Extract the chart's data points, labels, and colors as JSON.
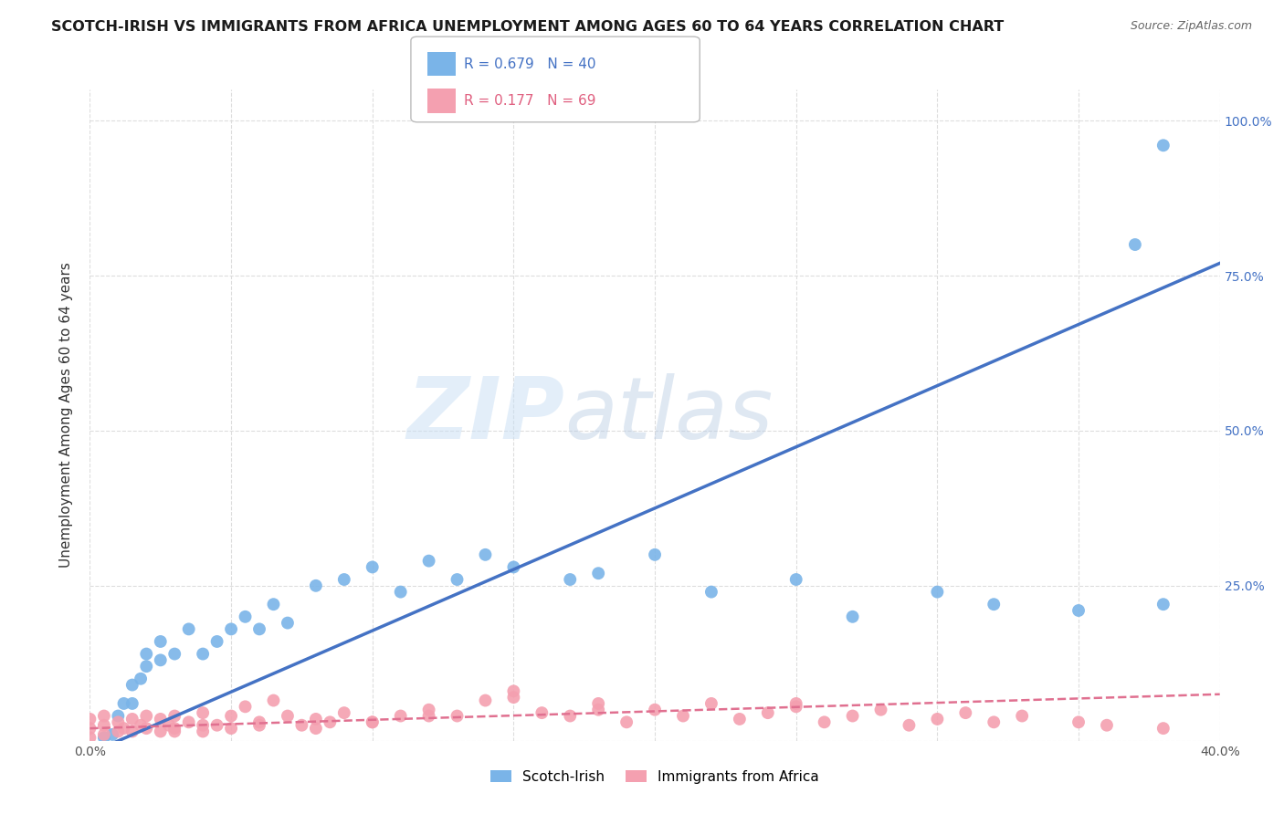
{
  "title": "SCOTCH-IRISH VS IMMIGRANTS FROM AFRICA UNEMPLOYMENT AMONG AGES 60 TO 64 YEARS CORRELATION CHART",
  "source": "Source: ZipAtlas.com",
  "ylabel": "Unemployment Among Ages 60 to 64 years",
  "xmin": 0.0,
  "xmax": 0.4,
  "ymin": 0.0,
  "ymax": 1.05,
  "x_ticks": [
    0.0,
    0.05,
    0.1,
    0.15,
    0.2,
    0.25,
    0.3,
    0.35,
    0.4
  ],
  "y_ticks": [
    0.0,
    0.25,
    0.5,
    0.75,
    1.0
  ],
  "watermark_zip": "ZIP",
  "watermark_atlas": "atlas",
  "series1_color": "#7ab4e8",
  "series2_color": "#f4a0b0",
  "series1_label": "Scotch-Irish",
  "series2_label": "Immigrants from Africa",
  "series1_R": "0.679",
  "series1_N": "40",
  "series2_R": "0.177",
  "series2_N": "69",
  "line1_color": "#4472c4",
  "line2_color": "#e07090",
  "line1_x0": 0.0,
  "line1_y0": -0.02,
  "line1_x1": 0.4,
  "line1_y1": 0.77,
  "line2_x0": 0.0,
  "line2_y0": 0.02,
  "line2_x1": 0.4,
  "line2_y1": 0.075,
  "grid_color": "#dddddd",
  "series1_x": [
    0.005,
    0.008,
    0.01,
    0.012,
    0.015,
    0.015,
    0.018,
    0.02,
    0.02,
    0.025,
    0.025,
    0.03,
    0.035,
    0.04,
    0.045,
    0.05,
    0.055,
    0.06,
    0.065,
    0.07,
    0.08,
    0.09,
    0.1,
    0.11,
    0.12,
    0.13,
    0.14,
    0.15,
    0.17,
    0.18,
    0.2,
    0.22,
    0.25,
    0.27,
    0.3,
    0.32,
    0.35,
    0.38,
    0.37,
    0.38
  ],
  "series1_y": [
    0.005,
    0.01,
    0.04,
    0.06,
    0.06,
    0.09,
    0.1,
    0.12,
    0.14,
    0.13,
    0.16,
    0.14,
    0.18,
    0.14,
    0.16,
    0.18,
    0.2,
    0.18,
    0.22,
    0.19,
    0.25,
    0.26,
    0.28,
    0.24,
    0.29,
    0.26,
    0.3,
    0.28,
    0.26,
    0.27,
    0.3,
    0.24,
    0.26,
    0.2,
    0.24,
    0.22,
    0.21,
    0.22,
    0.8,
    0.96
  ],
  "series2_x": [
    0.0,
    0.0,
    0.0,
    0.005,
    0.005,
    0.005,
    0.01,
    0.01,
    0.012,
    0.015,
    0.015,
    0.018,
    0.02,
    0.02,
    0.025,
    0.025,
    0.028,
    0.03,
    0.03,
    0.035,
    0.04,
    0.04,
    0.045,
    0.05,
    0.05,
    0.055,
    0.06,
    0.065,
    0.07,
    0.075,
    0.08,
    0.085,
    0.09,
    0.1,
    0.11,
    0.12,
    0.13,
    0.14,
    0.15,
    0.16,
    0.17,
    0.18,
    0.19,
    0.2,
    0.21,
    0.22,
    0.23,
    0.24,
    0.25,
    0.26,
    0.27,
    0.28,
    0.29,
    0.3,
    0.31,
    0.32,
    0.33,
    0.35,
    0.36,
    0.38,
    0.25,
    0.18,
    0.15,
    0.12,
    0.1,
    0.08,
    0.06,
    0.04,
    0.03
  ],
  "series2_y": [
    0.005,
    0.02,
    0.035,
    0.01,
    0.025,
    0.04,
    0.015,
    0.03,
    0.02,
    0.015,
    0.035,
    0.025,
    0.02,
    0.04,
    0.015,
    0.035,
    0.025,
    0.02,
    0.04,
    0.03,
    0.015,
    0.045,
    0.025,
    0.02,
    0.04,
    0.055,
    0.03,
    0.065,
    0.04,
    0.025,
    0.035,
    0.03,
    0.045,
    0.03,
    0.04,
    0.05,
    0.04,
    0.065,
    0.08,
    0.045,
    0.04,
    0.06,
    0.03,
    0.05,
    0.04,
    0.06,
    0.035,
    0.045,
    0.055,
    0.03,
    0.04,
    0.05,
    0.025,
    0.035,
    0.045,
    0.03,
    0.04,
    0.03,
    0.025,
    0.02,
    0.06,
    0.05,
    0.07,
    0.04,
    0.03,
    0.02,
    0.025,
    0.025,
    0.015
  ],
  "background_color": "#ffffff"
}
